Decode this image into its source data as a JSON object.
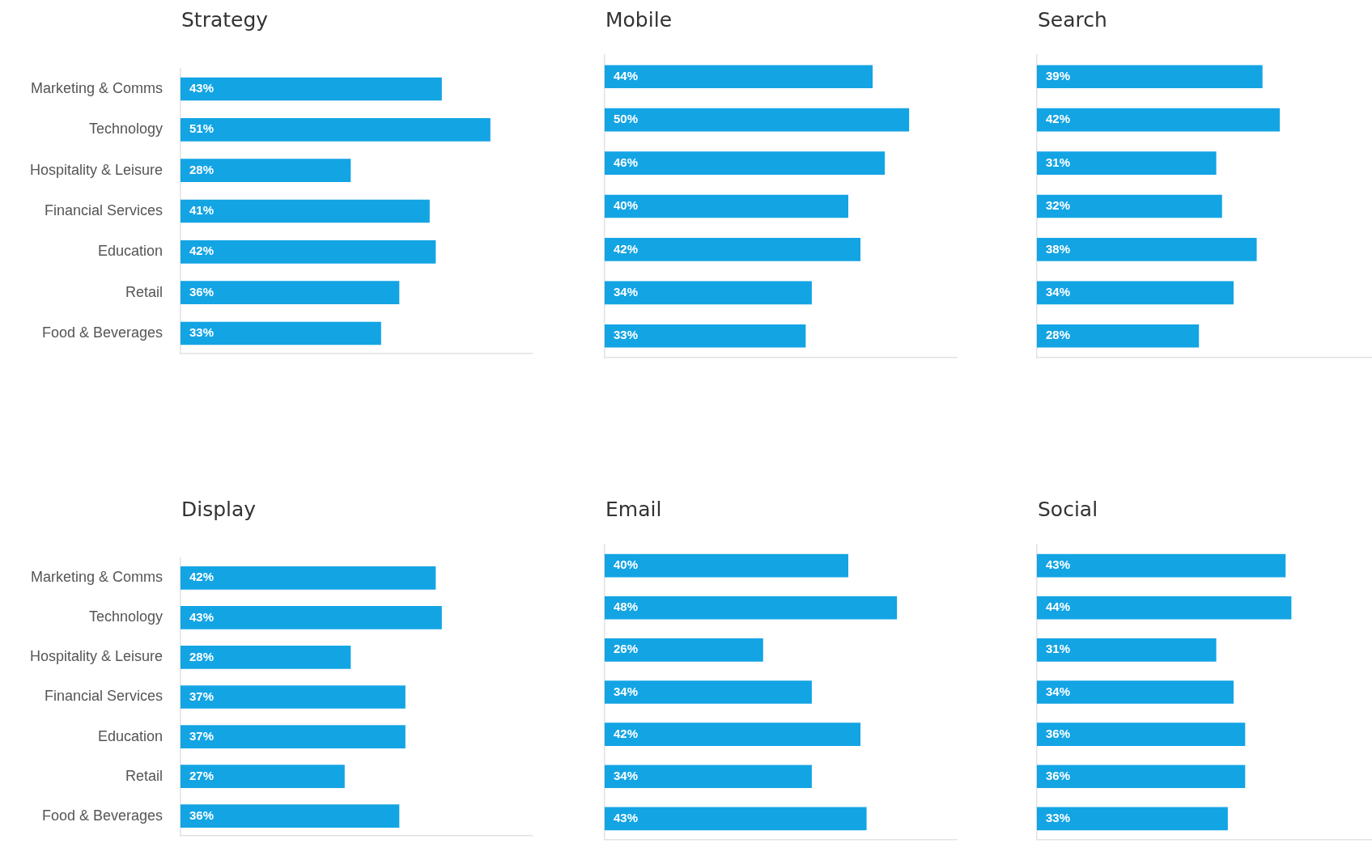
{
  "chart_data": [
    {
      "type": "bar",
      "orientation": "horizontal",
      "title": "Strategy",
      "categories": [
        "Marketing & Comms",
        "Technology",
        "Hospitality & Leisure",
        "Financial Services",
        "Education",
        "Retail",
        "Food & Beverages"
      ],
      "values": [
        43,
        51,
        28,
        41,
        42,
        36,
        33
      ],
      "value_labels": [
        "43%",
        "51%",
        "28%",
        "41%",
        "42%",
        "36%",
        "33%"
      ],
      "color": "#13a4e4",
      "xlim": [
        0,
        58
      ],
      "tick_labels": "y"
    },
    {
      "type": "bar",
      "orientation": "horizontal",
      "title": "Mobile",
      "categories": [
        null,
        null,
        null,
        null,
        null,
        null,
        null
      ],
      "values": [
        44,
        50,
        46,
        40,
        42,
        34,
        33
      ],
      "value_labels": [
        "44%",
        "50%",
        "46%",
        "40%",
        "42%",
        "34%",
        "33%"
      ],
      "color": "#13a4e4",
      "xlim": [
        0,
        58
      ],
      "tick_labels": false
    },
    {
      "type": "bar",
      "orientation": "horizontal",
      "title": "Search",
      "categories": [
        null,
        null,
        null,
        null,
        null,
        null,
        null
      ],
      "values": [
        39,
        42,
        31,
        32,
        38,
        34,
        28
      ],
      "value_labels": [
        "39%",
        "42%",
        "31%",
        "32%",
        "38%",
        "34%",
        "28%"
      ],
      "color": "#13a4e4",
      "xlim": [
        0,
        58
      ],
      "tick_labels": false
    },
    {
      "type": "bar",
      "orientation": "horizontal",
      "title": "Display",
      "categories": [
        "Marketing & Comms",
        "Technology",
        "Hospitality & Leisure",
        "Financial Services",
        "Education",
        "Retail",
        "Food & Beverages"
      ],
      "values": [
        42,
        43,
        28,
        37,
        37,
        27,
        36
      ],
      "value_labels": [
        "42%",
        "43%",
        "28%",
        "37%",
        "37%",
        "27%",
        "36%"
      ],
      "color": "#13a4e4",
      "xlim": [
        0,
        58
      ],
      "tick_labels": "y"
    },
    {
      "type": "bar",
      "orientation": "horizontal",
      "title": "Email",
      "categories": [
        null,
        null,
        null,
        null,
        null,
        null,
        null
      ],
      "values": [
        40,
        48,
        26,
        34,
        42,
        34,
        43
      ],
      "value_labels": [
        "40%",
        "48%",
        "26%",
        "34%",
        "42%",
        "34%",
        "43%"
      ],
      "color": "#13a4e4",
      "xlim": [
        0,
        58
      ],
      "tick_labels": false
    },
    {
      "type": "bar",
      "orientation": "horizontal",
      "title": "Social",
      "categories": [
        null,
        null,
        null,
        null,
        null,
        null,
        null
      ],
      "values": [
        43,
        44,
        31,
        34,
        36,
        36,
        33
      ],
      "value_labels": [
        "43%",
        "44%",
        "31%",
        "34%",
        "36%",
        "36%",
        "33%"
      ],
      "color": "#13a4e4",
      "xlim": [
        0,
        58
      ],
      "tick_labels": false
    }
  ]
}
